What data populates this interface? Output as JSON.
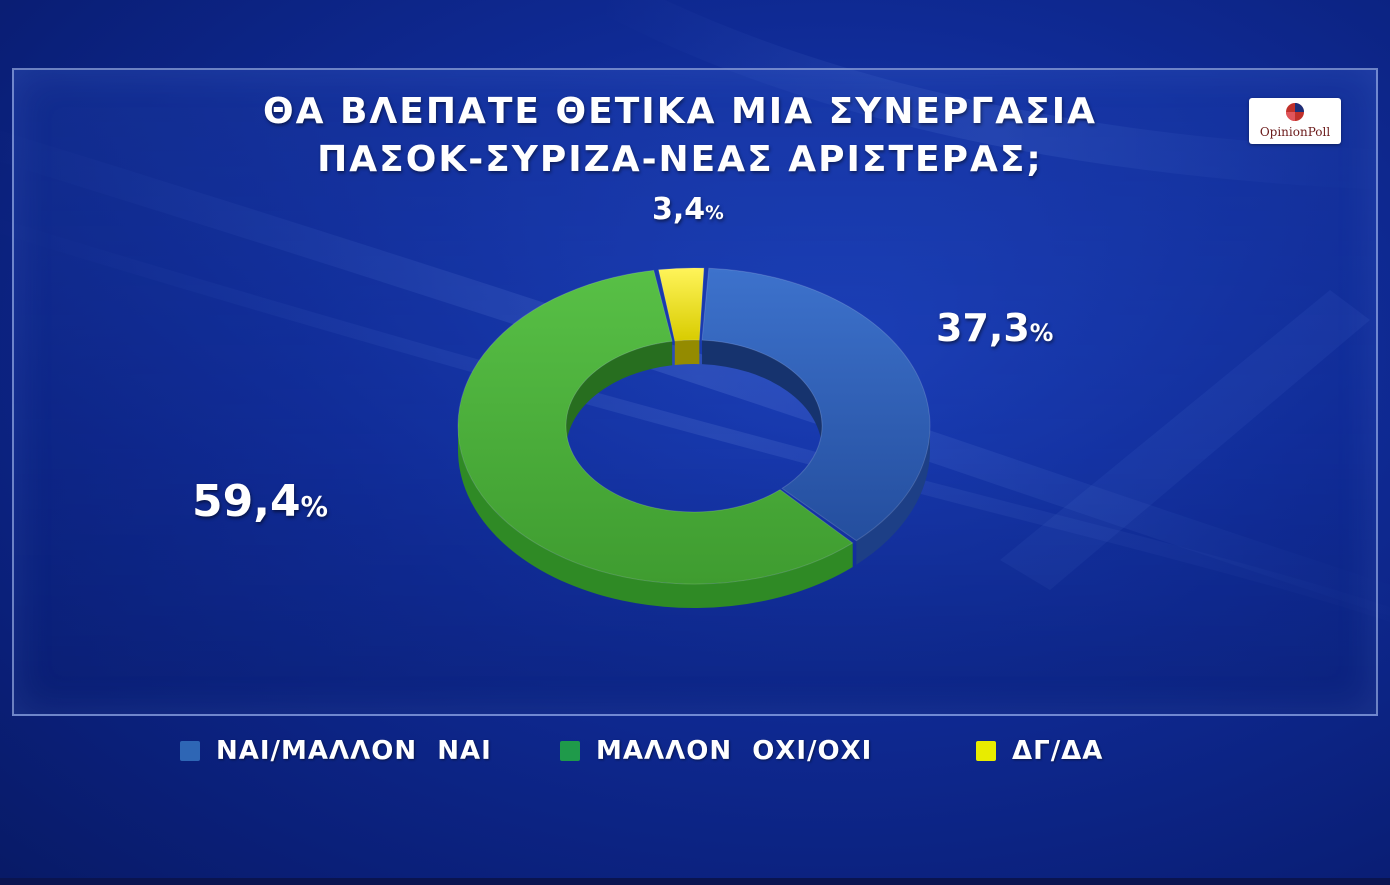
{
  "title_lines": [
    "ΘΑ ΒΛΕΠΑΤΕ ΘΕΤΙΚΑ ΜΙΑ ΣΥΝΕΡΓΑΣΙΑ",
    "ΠΑΣΟΚ-ΣΥΡΙΖΑ-ΝΕΑΣ ΑΡΙΣΤΕΡΑΣ;"
  ],
  "logo": {
    "text": "OpinionPoll"
  },
  "chart_data": {
    "type": "pie",
    "style": "donut-3d",
    "title": "ΘΑ ΒΛΕΠΑΤΕ ΘΕΤΙΚΑ ΜΙΑ ΣΥΝΕΡΓΑΣΙΑ ΠΑΣΟΚ-ΣΥΡΙΖΑ-ΝΕΑΣ ΑΡΙΣΤΕΡΑΣ;",
    "legend_position": "bottom",
    "slices": [
      {
        "name": "ΝΑΙ/ΜΑΛΛΟΝ  ΝΑΙ",
        "value": 37.3,
        "label": "37,3",
        "color": "#2f5fb8",
        "legend_color": "#2e66b5"
      },
      {
        "name": "ΜΑΛΛΟΝ  ΟΧΙ/ΟΧΙ",
        "value": 59.4,
        "label": "59,4",
        "color": "#4cb33a",
        "legend_color": "#1f9a4a"
      },
      {
        "name": "ΔΓ/ΔΑ",
        "value": 3.4,
        "label": "3,4",
        "color": "#f2e600",
        "legend_color": "#e8ec00"
      }
    ],
    "unit_sign": "%"
  }
}
